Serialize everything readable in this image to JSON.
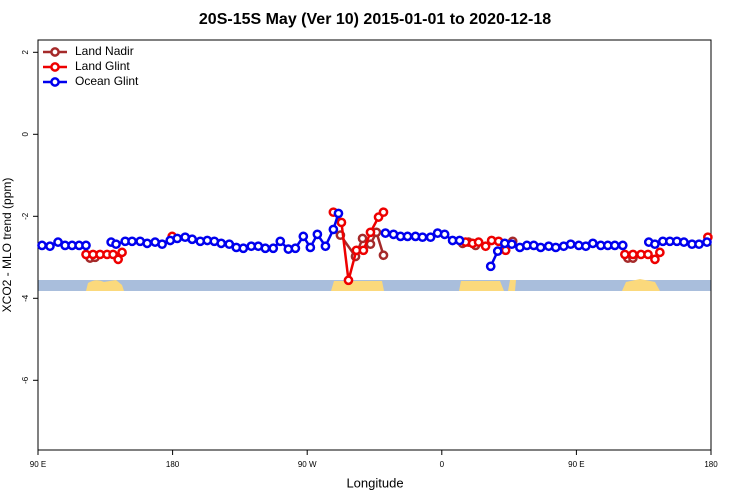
{
  "chart_data": {
    "type": "line",
    "title": "20S-15S May (Ver 10)   2015-01-01 to 2020-12-18",
    "x_label": "Longitude",
    "y_label": "XCO2 - MLO trend (ppm)",
    "xlim": [
      90,
      540
    ],
    "xticks": [
      {
        "value": 90,
        "label": "90 E"
      },
      180,
      {
        "value": 270,
        "label": "90 W"
      },
      {
        "value": 360,
        "label": "0"
      },
      {
        "value": 450,
        "label": "90 E"
      },
      {
        "value": 540,
        "label": "180"
      }
    ],
    "ylim": [
      -7.7,
      2.3
    ],
    "yticks": [
      -6,
      -4,
      -2,
      0,
      2
    ],
    "legend": "top-left",
    "series": [
      {
        "name": "Land Nadir",
        "color": "#a52a2a",
        "x": [
          124.8,
          128.2,
          292.2,
          302.3,
          307.0,
          312.3,
          316.3,
          321.0,
          373.9,
          377.9,
          382.6,
          407.4,
          484.4,
          487.8
        ],
        "values": [
          -3.02,
          -3.0,
          -2.46,
          -2.98,
          -2.54,
          -2.68,
          -2.39,
          -2.95,
          -2.66,
          -2.63,
          -2.71,
          -2.61,
          -3.02,
          -3.02
        ]
      },
      {
        "name": "Land Glint",
        "color": "#ee0000",
        "x": [
          122.1,
          126.8,
          131.5,
          136.2,
          140.2,
          143.6,
          146.2,
          179.7,
          287.5,
          292.9,
          297.6,
          302.9,
          307.6,
          312.3,
          317.7,
          321.0,
          375.9,
          380.6,
          384.6,
          389.3,
          393.3,
          398.0,
          402.7,
          482.4,
          487.8,
          493.2,
          497.9,
          502.5,
          505.8,
          537.9
        ],
        "values": [
          -2.93,
          -2.93,
          -2.93,
          -2.93,
          -2.93,
          -3.05,
          -2.88,
          -2.49,
          -1.9,
          -2.15,
          -3.56,
          -2.83,
          -2.83,
          -2.39,
          -2.02,
          -1.9,
          -2.63,
          -2.66,
          -2.63,
          -2.73,
          -2.59,
          -2.61,
          -2.83,
          -2.93,
          -2.93,
          -2.93,
          -2.93,
          -3.05,
          -2.88,
          -2.51
        ]
      },
      {
        "name": "Ocean Glint",
        "color": "#0000ee",
        "x": [
          92.7,
          98.0,
          103.4,
          108.1,
          112.8,
          117.5,
          122.1,
          138.9,
          142.2,
          148.3,
          152.9,
          158.3,
          163.0,
          168.3,
          173.0,
          178.4,
          183.1,
          188.4,
          193.1,
          198.5,
          203.2,
          207.9,
          212.5,
          217.9,
          222.6,
          227.3,
          232.6,
          237.3,
          242.0,
          247.3,
          252.0,
          257.4,
          262.1,
          267.4,
          272.1,
          276.8,
          282.2,
          287.5,
          290.9,
          322.3,
          327.7,
          332.4,
          337.1,
          342.4,
          347.1,
          352.5,
          357.2,
          361.9,
          367.2,
          371.9,
          392.7,
          397.4,
          402.1,
          406.8,
          412.2,
          416.9,
          421.5,
          426.1,
          431.5,
          436.2,
          441.5,
          446.2,
          451.6,
          456.3,
          461.0,
          466.3,
          471.0,
          475.7,
          481.0,
          498.4,
          502.5,
          507.8,
          512.5,
          517.2,
          521.9,
          527.3,
          532.0,
          537.3
        ],
        "values": [
          -2.71,
          -2.73,
          -2.63,
          -2.71,
          -2.71,
          -2.71,
          -2.71,
          -2.63,
          -2.68,
          -2.61,
          -2.61,
          -2.61,
          -2.66,
          -2.63,
          -2.68,
          -2.59,
          -2.54,
          -2.51,
          -2.56,
          -2.61,
          -2.59,
          -2.61,
          -2.66,
          -2.68,
          -2.76,
          -2.78,
          -2.73,
          -2.73,
          -2.78,
          -2.78,
          -2.61,
          -2.8,
          -2.78,
          -2.49,
          -2.76,
          -2.44,
          -2.73,
          -2.32,
          -1.93,
          -2.41,
          -2.44,
          -2.49,
          -2.49,
          -2.49,
          -2.51,
          -2.51,
          -2.41,
          -2.44,
          -2.59,
          -2.59,
          -3.22,
          -2.85,
          -2.66,
          -2.68,
          -2.76,
          -2.71,
          -2.71,
          -2.76,
          -2.73,
          -2.76,
          -2.73,
          -2.68,
          -2.71,
          -2.73,
          -2.66,
          -2.71,
          -2.71,
          -2.71,
          -2.71,
          -2.63,
          -2.68,
          -2.61,
          -2.61,
          -2.61,
          -2.63,
          -2.68,
          -2.68,
          -2.63
        ]
      }
    ]
  }
}
